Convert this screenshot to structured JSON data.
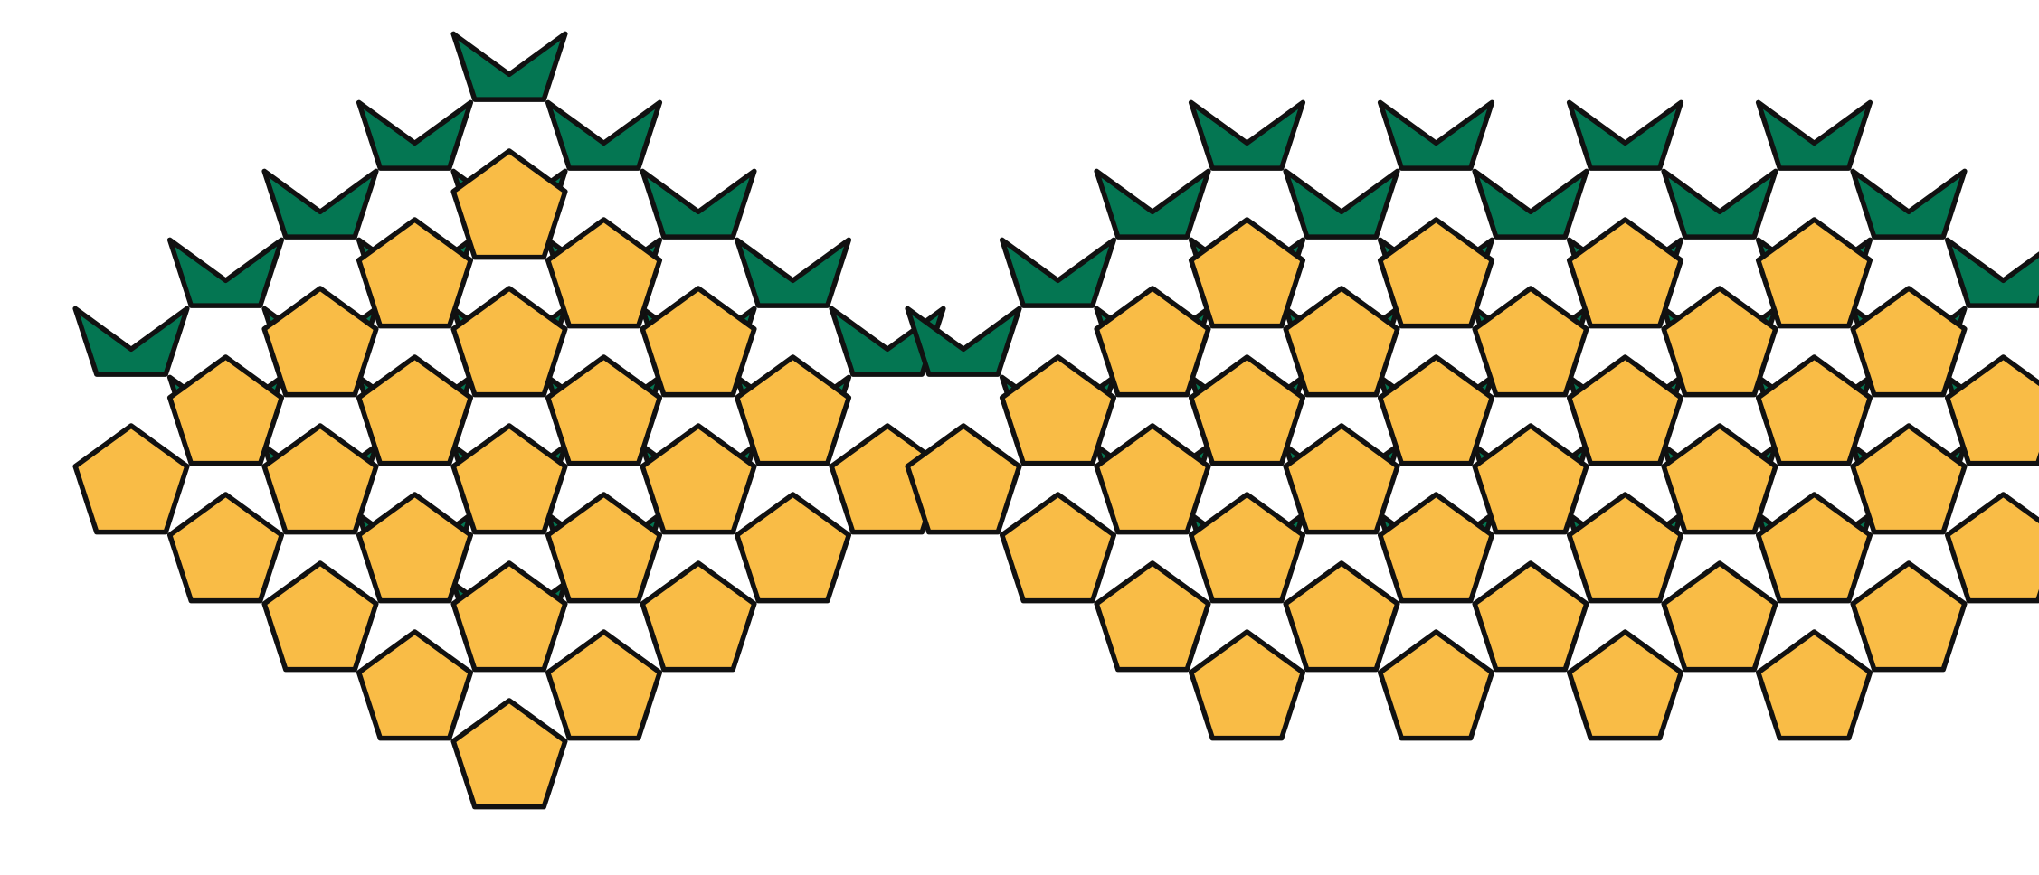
{
  "colors": {
    "pentagon_fill": "#F9BC46",
    "star_fill": "#047652",
    "outline": "#111111",
    "background": "#FFFFFF"
  },
  "figures": [
    {
      "name": "left-rhombus-tiling",
      "tiles": [
        "pentagon",
        "star"
      ],
      "grid": "5x5"
    },
    {
      "name": "right-hexagonal-tiling",
      "tiles": [
        "pentagon",
        "star"
      ],
      "grid": "rings-3"
    }
  ]
}
